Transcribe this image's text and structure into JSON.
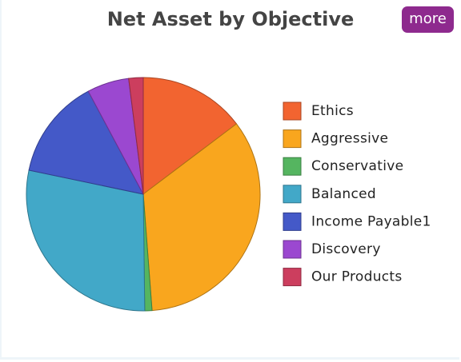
{
  "chart_data": {
    "type": "pie",
    "title": "Net Asset by Objective",
    "categories": [
      "Ethics",
      "Aggressive",
      "Conservative",
      "Balanced",
      "Income Payable1",
      "Discovery",
      "Our Products"
    ],
    "values": [
      14.7,
      34.1,
      1.0,
      28.5,
      13.9,
      5.8,
      2.0
    ],
    "colors": [
      "#f26430",
      "#f9a61e",
      "#55b560",
      "#42a8c8",
      "#4459c8",
      "#9b48d0",
      "#cc3e5e"
    ],
    "legend": "right"
  },
  "button": {
    "label": "more"
  }
}
